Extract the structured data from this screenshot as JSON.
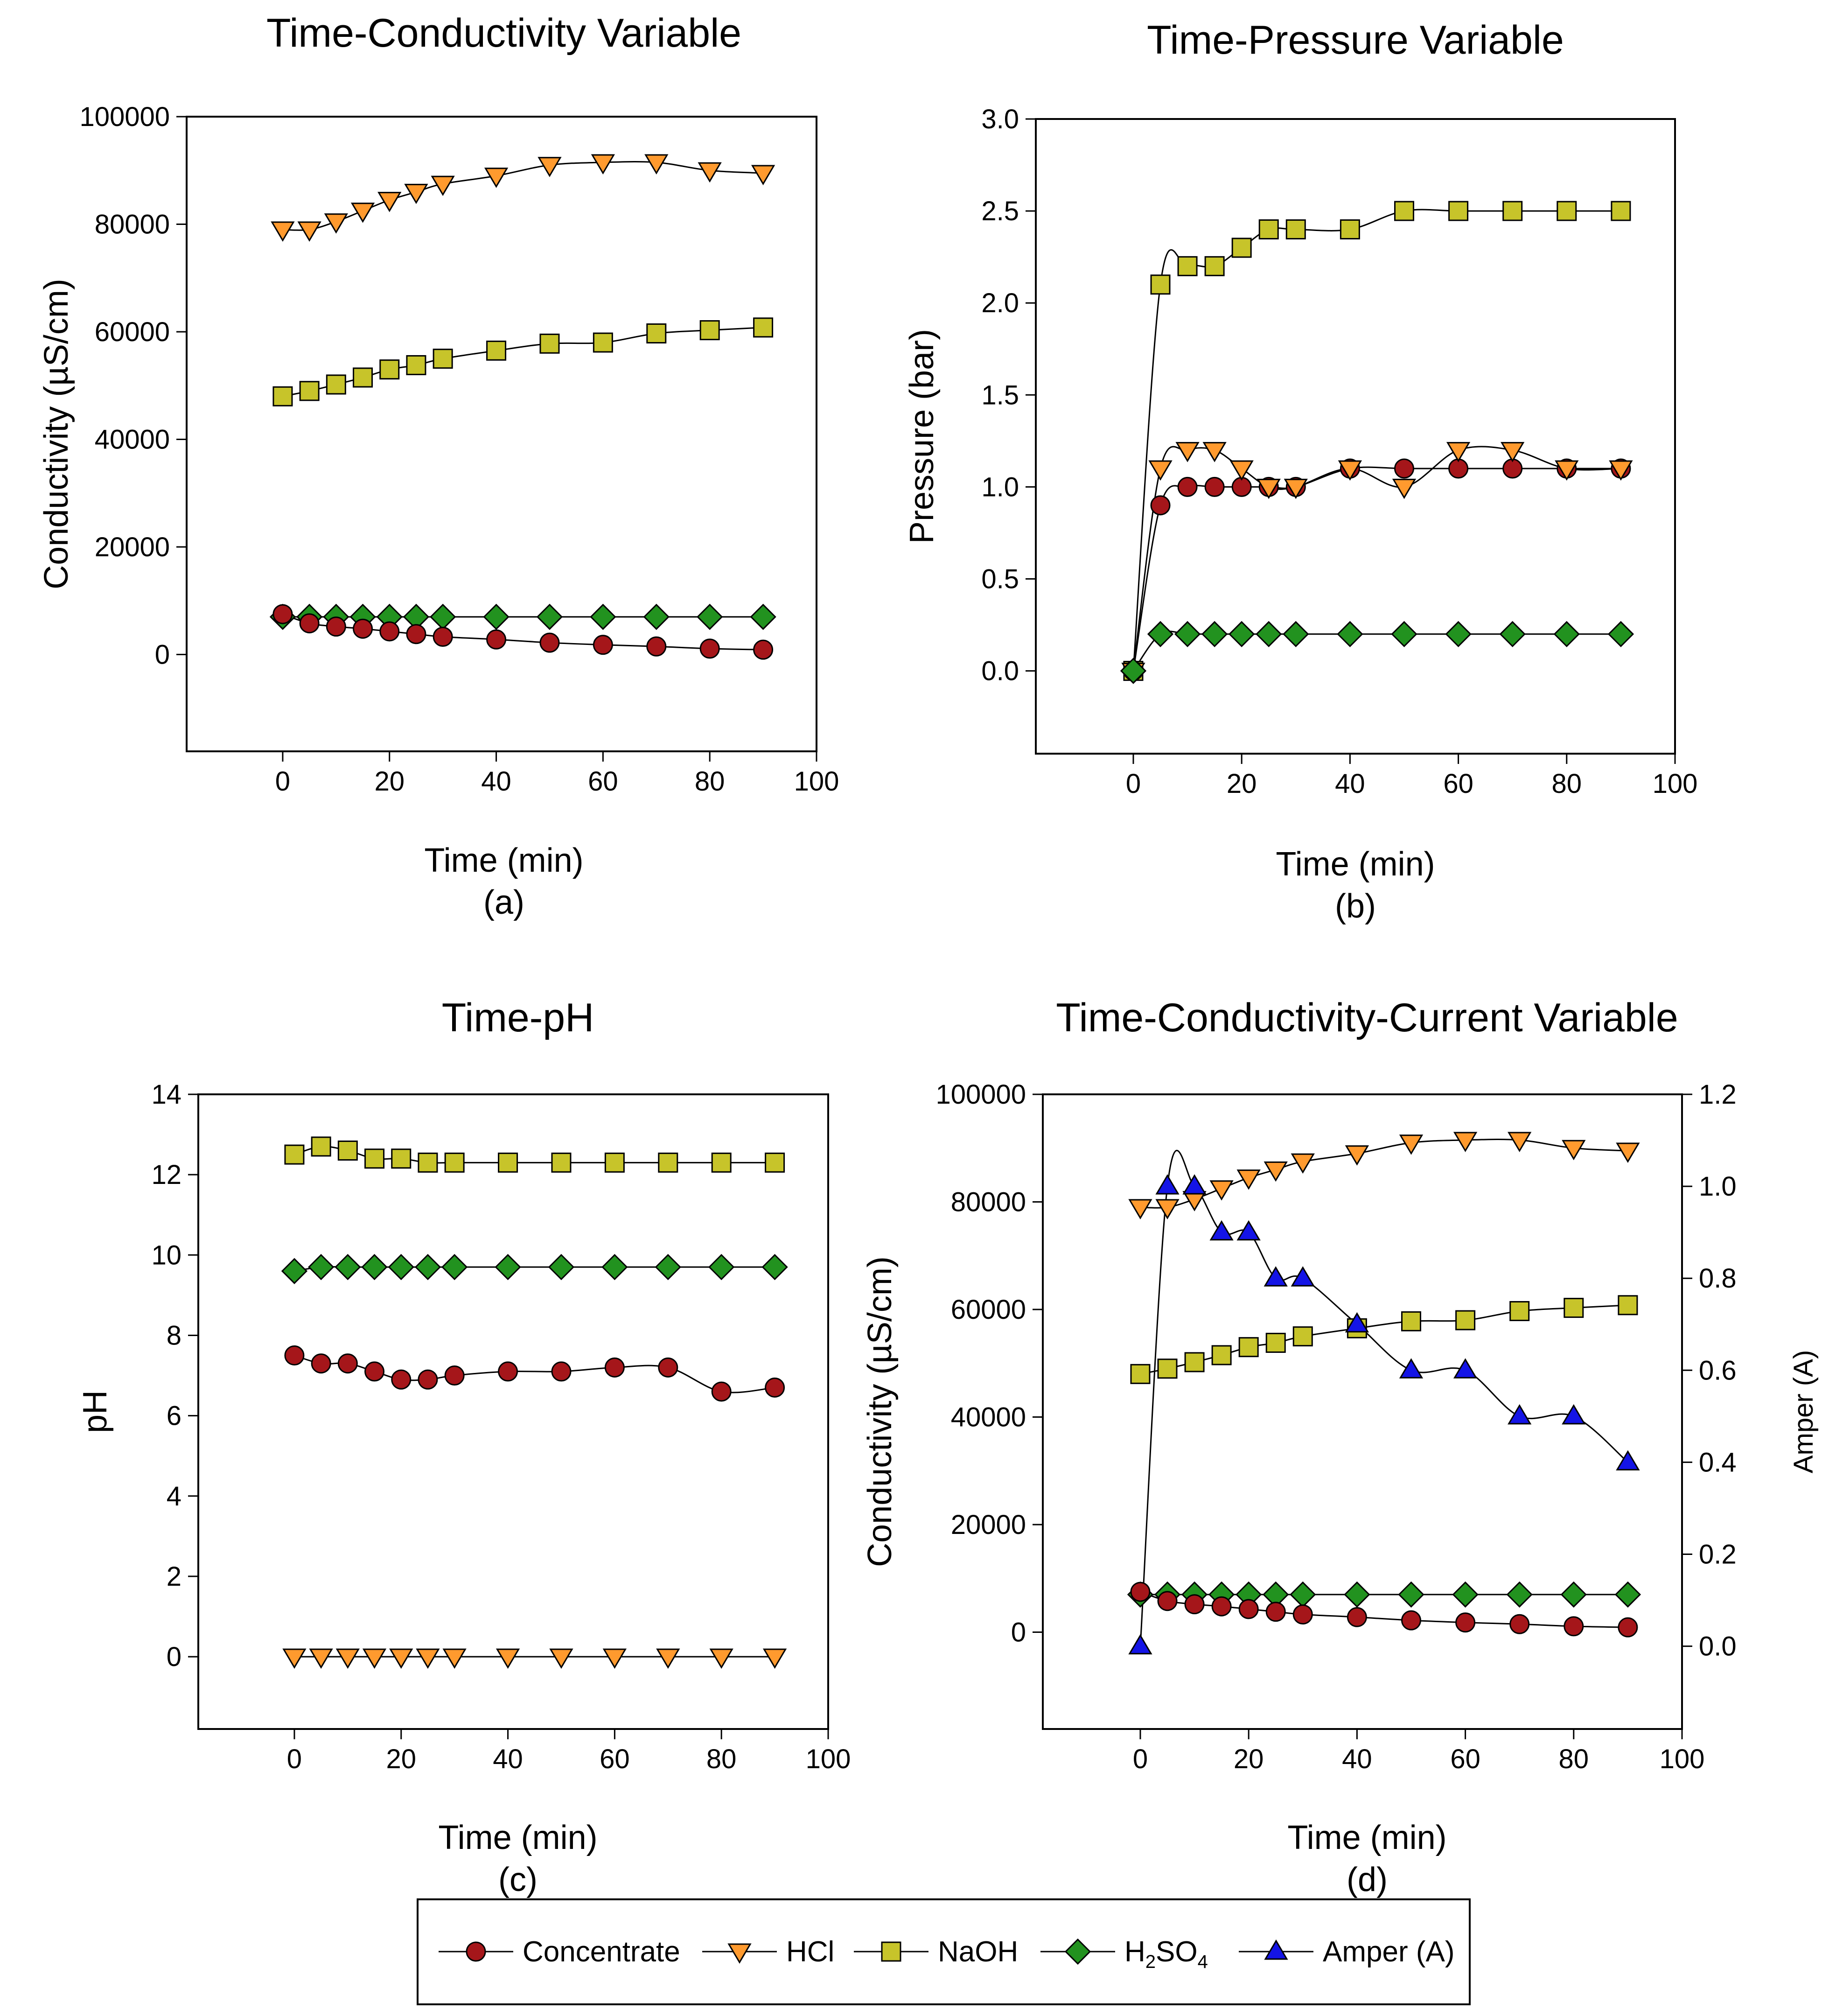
{
  "colors": {
    "concentrate": "#A5161A",
    "hcl": "#FF9A2E",
    "naoh": "#C7C42A",
    "h2so4": "#22921F",
    "amper": "#1414E6"
  },
  "legend": {
    "concentrate": "Concentrate",
    "hcl": "HCl",
    "naoh": "NaOH",
    "h2so4_main": "H",
    "h2so4_sub1": "2",
    "h2so4_mid": "SO",
    "h2so4_sub2": "4",
    "amper": "Amper (A)"
  },
  "chart_data": [
    {
      "type": "line",
      "title": "Time-Conductivity Variable",
      "xlabel": "Time (min)",
      "caption": "(a)",
      "ylabel": "Conductivity (µS/cm)",
      "xlim": [
        -18,
        100
      ],
      "ylim": [
        -18000,
        100000
      ],
      "xticks": [
        0,
        20,
        40,
        60,
        80,
        100
      ],
      "yticks": [
        0,
        20000,
        40000,
        60000,
        80000,
        100000
      ],
      "x": [
        0,
        5,
        10,
        15,
        20,
        25,
        30,
        40,
        50,
        60,
        70,
        80,
        90
      ],
      "series": [
        {
          "name": "HCl",
          "key": "hcl",
          "marker": "triangle-down",
          "values": [
            79000,
            79000,
            80500,
            82500,
            84500,
            86000,
            87500,
            89000,
            91000,
            91500,
            91500,
            90000,
            89500
          ]
        },
        {
          "name": "NaOH",
          "key": "naoh",
          "marker": "square",
          "values": [
            48000,
            49000,
            50200,
            51500,
            53000,
            53800,
            55000,
            56500,
            57800,
            58000,
            59700,
            60300,
            60800
          ]
        },
        {
          "name": "H2SO4",
          "key": "h2so4",
          "marker": "diamond",
          "values": [
            7000,
            7000,
            7000,
            7000,
            7000,
            7000,
            7000,
            7000,
            7000,
            7000,
            7000,
            7000,
            7000
          ]
        },
        {
          "name": "Concentrate",
          "key": "concentrate",
          "marker": "circle",
          "values": [
            7500,
            5800,
            5200,
            4800,
            4300,
            3800,
            3300,
            2800,
            2200,
            1800,
            1500,
            1100,
            900
          ]
        }
      ]
    },
    {
      "type": "line",
      "title": "Time-Pressure Variable",
      "xlabel": "Time (min)",
      "caption": "(b)",
      "ylabel": "Pressure (bar)",
      "xlim": [
        -18,
        100
      ],
      "ylim": [
        -0.45,
        3.0
      ],
      "xticks": [
        0,
        20,
        40,
        60,
        80,
        100
      ],
      "yticks": [
        0.0,
        0.5,
        1.0,
        1.5,
        2.0,
        2.5,
        3.0
      ],
      "ytick_labels": [
        "0.0",
        "0.5",
        "1.0",
        "1.5",
        "2.0",
        "2.5",
        "3.0"
      ],
      "x": [
        0,
        5,
        10,
        15,
        20,
        25,
        30,
        40,
        50,
        60,
        70,
        80,
        90
      ],
      "series": [
        {
          "name": "NaOH",
          "key": "naoh",
          "marker": "square",
          "values": [
            0,
            2.1,
            2.2,
            2.2,
            2.3,
            2.4,
            2.4,
            2.4,
            2.5,
            2.5,
            2.5,
            2.5,
            2.5
          ]
        },
        {
          "name": "Concentrate",
          "key": "concentrate",
          "marker": "circle",
          "values": [
            0,
            0.9,
            1.0,
            1.0,
            1.0,
            1.0,
            1.0,
            1.1,
            1.1,
            1.1,
            1.1,
            1.1,
            1.1
          ]
        },
        {
          "name": "HCl",
          "key": "hcl",
          "marker": "triangle-down",
          "values": [
            0,
            1.1,
            1.2,
            1.2,
            1.1,
            1.0,
            1.0,
            1.1,
            1.0,
            1.2,
            1.2,
            1.1,
            1.1
          ]
        },
        {
          "name": "H2SO4",
          "key": "h2so4",
          "marker": "diamond",
          "values": [
            0,
            0.2,
            0.2,
            0.2,
            0.2,
            0.2,
            0.2,
            0.2,
            0.2,
            0.2,
            0.2,
            0.2,
            0.2
          ]
        }
      ]
    },
    {
      "type": "line",
      "title": "Time-pH",
      "xlabel": "Time (min)",
      "caption": "(c)",
      "ylabel": "pH",
      "xlim": [
        -18,
        100
      ],
      "ylim": [
        -1.8,
        14
      ],
      "xticks": [
        0,
        20,
        40,
        60,
        80,
        100
      ],
      "yticks": [
        0,
        2,
        4,
        6,
        8,
        10,
        12,
        14
      ],
      "x": [
        0,
        5,
        10,
        15,
        20,
        25,
        30,
        40,
        50,
        60,
        70,
        80,
        90
      ],
      "series": [
        {
          "name": "NaOH",
          "key": "naoh",
          "marker": "square",
          "values": [
            12.5,
            12.7,
            12.6,
            12.4,
            12.4,
            12.3,
            12.3,
            12.3,
            12.3,
            12.3,
            12.3,
            12.3,
            12.3
          ]
        },
        {
          "name": "H2SO4",
          "key": "h2so4",
          "marker": "diamond",
          "values": [
            9.6,
            9.7,
            9.7,
            9.7,
            9.7,
            9.7,
            9.7,
            9.7,
            9.7,
            9.7,
            9.7,
            9.7,
            9.7
          ]
        },
        {
          "name": "Concentrate",
          "key": "concentrate",
          "marker": "circle",
          "values": [
            7.5,
            7.3,
            7.3,
            7.1,
            6.9,
            6.9,
            7.0,
            7.1,
            7.1,
            7.2,
            7.2,
            6.6,
            6.7
          ]
        },
        {
          "name": "HCl",
          "key": "hcl",
          "marker": "triangle-down",
          "values": [
            0,
            0,
            0,
            0,
            0,
            0,
            0,
            0,
            0,
            0,
            0,
            0,
            0
          ]
        }
      ]
    },
    {
      "type": "line",
      "title": "Time-Conductivity-Current Variable",
      "xlabel": "Time (min)",
      "caption": "(d)",
      "ylabel": "Conductivity (µS/cm)",
      "y2label": "Amper (A)",
      "xlim": [
        -18,
        100
      ],
      "ylim": [
        -18000,
        100000
      ],
      "y2lim": [
        -0.18,
        1.2
      ],
      "xticks": [
        0,
        20,
        40,
        60,
        80,
        100
      ],
      "yticks": [
        0,
        20000,
        40000,
        60000,
        80000,
        100000
      ],
      "y2ticks": [
        0.0,
        0.2,
        0.4,
        0.6,
        0.8,
        1.0,
        1.2
      ],
      "y2tick_labels": [
        "0.0",
        "0.2",
        "0.4",
        "0.6",
        "0.8",
        "1.0",
        "1.2"
      ],
      "x": [
        0,
        5,
        10,
        15,
        20,
        25,
        30,
        40,
        50,
        60,
        70,
        80,
        90
      ],
      "series": [
        {
          "name": "HCl",
          "key": "hcl",
          "marker": "triangle-down",
          "values": [
            79000,
            79000,
            80500,
            82500,
            84500,
            86000,
            87500,
            89000,
            91000,
            91500,
            91500,
            90000,
            89500
          ]
        },
        {
          "name": "NaOH",
          "key": "naoh",
          "marker": "square",
          "values": [
            48000,
            49000,
            50200,
            51500,
            53000,
            53800,
            55000,
            56500,
            57800,
            58000,
            59700,
            60300,
            60800
          ]
        },
        {
          "name": "H2SO4",
          "key": "h2so4",
          "marker": "diamond",
          "values": [
            7000,
            7000,
            7000,
            7000,
            7000,
            7000,
            7000,
            7000,
            7000,
            7000,
            7000,
            7000,
            7000
          ]
        },
        {
          "name": "Concentrate",
          "key": "concentrate",
          "marker": "circle",
          "values": [
            7500,
            5800,
            5200,
            4800,
            4300,
            3800,
            3300,
            2800,
            2200,
            1800,
            1500,
            1100,
            900
          ]
        },
        {
          "name": "Amper (A)",
          "key": "amper",
          "marker": "triangle-up",
          "axis": "y2",
          "values": [
            0,
            1.0,
            1.0,
            0.9,
            0.9,
            0.8,
            0.8,
            0.7,
            0.6,
            0.6,
            0.5,
            0.5,
            0.4
          ]
        }
      ]
    }
  ]
}
